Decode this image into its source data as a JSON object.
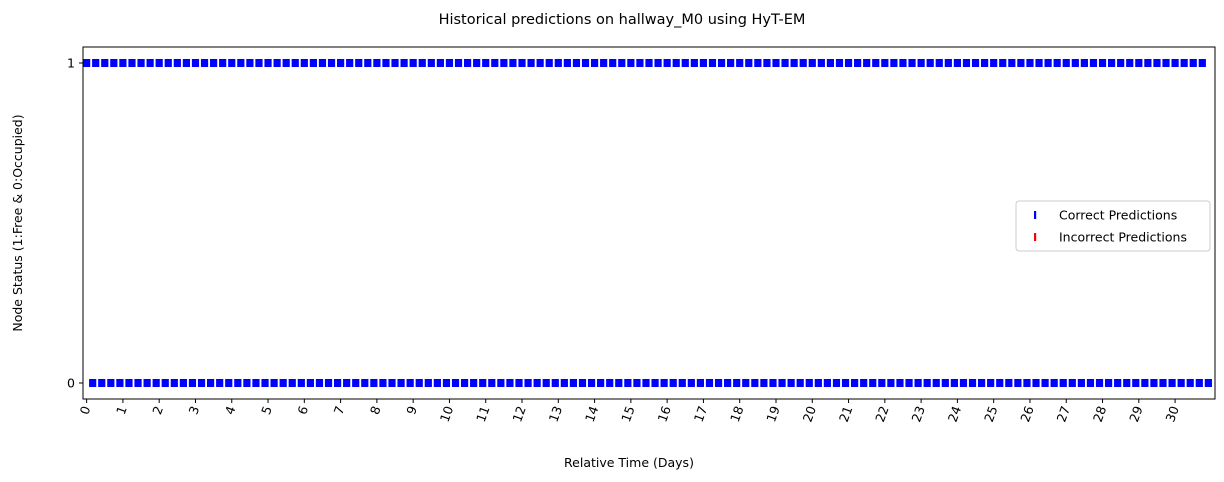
{
  "chart_data": {
    "type": "scatter",
    "title": "Historical predictions on hallway_M0 using HyT-EM",
    "xlabel": "Relative Time (Days)",
    "ylabel": "Node Status (1:Free & 0:Occupied)",
    "xlim": [
      -0.1,
      31.1
    ],
    "ylim": [
      -0.05,
      1.05
    ],
    "x_ticks": [
      0,
      1,
      2,
      3,
      4,
      5,
      6,
      7,
      8,
      9,
      10,
      11,
      12,
      13,
      14,
      15,
      16,
      17,
      18,
      19,
      20,
      21,
      22,
      23,
      24,
      25,
      26,
      27,
      28,
      29,
      30
    ],
    "x_tick_labels": [
      "0",
      "1",
      "2",
      "3",
      "4",
      "5",
      "6",
      "7",
      "8",
      "9",
      "10",
      "11",
      "12",
      "13",
      "14",
      "15",
      "16",
      "17",
      "18",
      "19",
      "20",
      "21",
      "22",
      "23",
      "24",
      "25",
      "26",
      "27",
      "28",
      "29",
      "30"
    ],
    "x_tick_rotation_deg": 70,
    "y_ticks": [
      0,
      1
    ],
    "y_tick_labels": [
      "0",
      "1"
    ],
    "grid": false,
    "legend_position": "center-right",
    "marker": "vertical-line",
    "series": [
      {
        "name": "Correct Predictions",
        "color": "#0000ff",
        "points": {
          "free_y": 1,
          "free_x_start": 0,
          "free_x_step": 0.25,
          "free_count": 124,
          "occupied_y": 0,
          "occupied_x_start": 0.167,
          "occupied_x_step": 0.25,
          "occupied_count": 124
        }
      },
      {
        "name": "Incorrect Predictions",
        "color": "#ff0000",
        "points": {
          "free_y": 1,
          "free_x_start": 0,
          "free_x_step": 0.25,
          "free_count": 0,
          "occupied_y": 0,
          "occupied_x_start": 0,
          "occupied_x_step": 0.25,
          "occupied_count": 0
        }
      }
    ]
  }
}
